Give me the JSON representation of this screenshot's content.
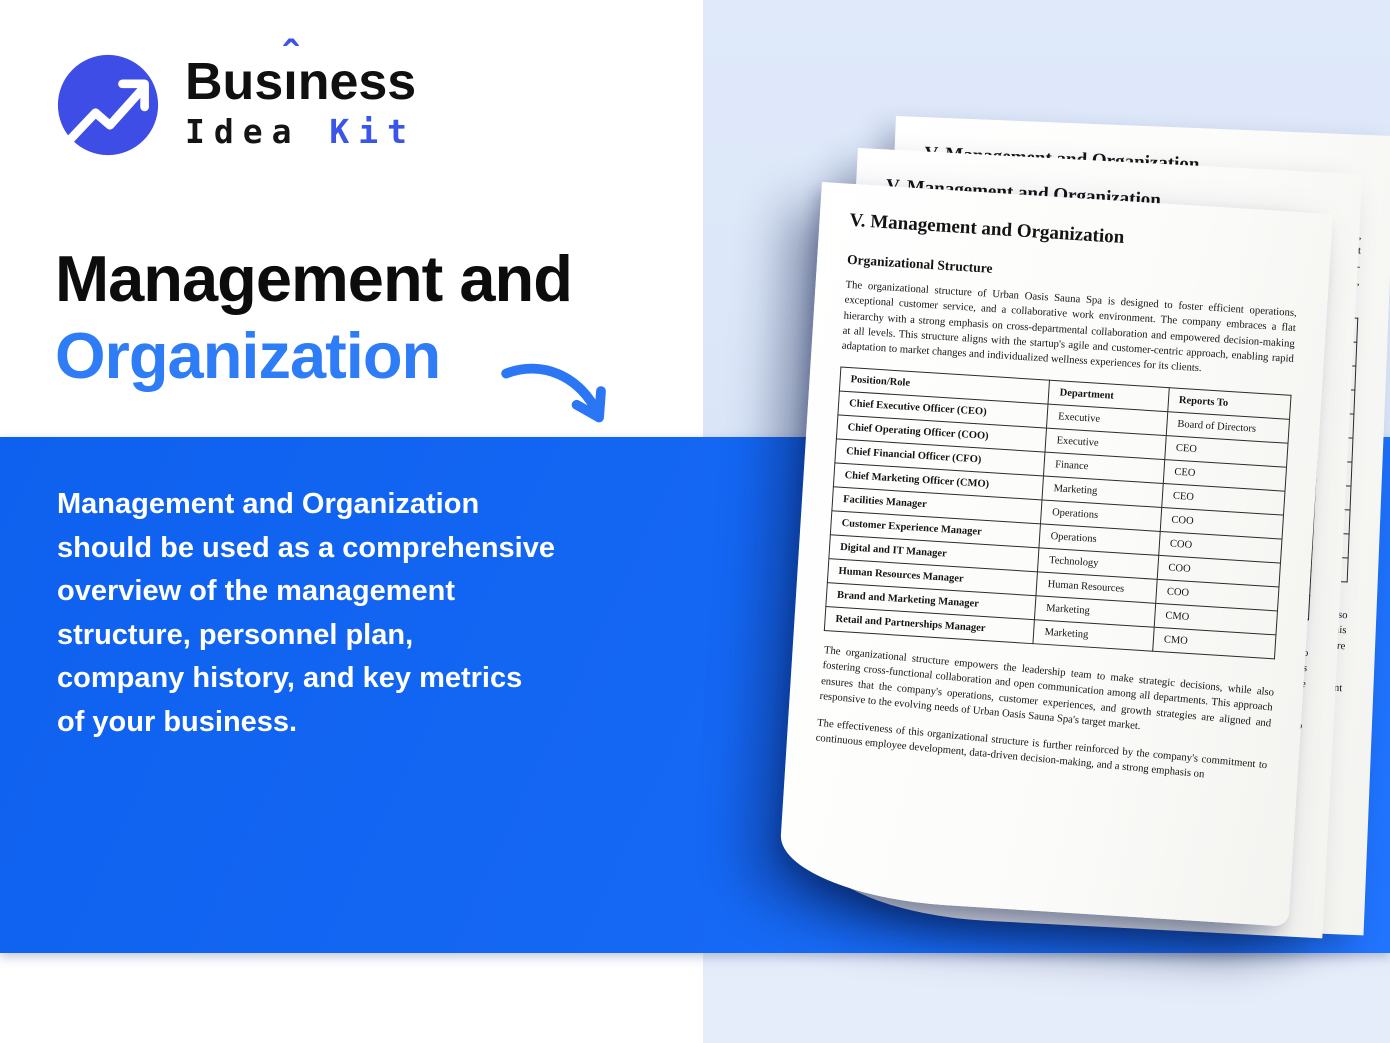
{
  "colors": {
    "band_blue": "#1568f4",
    "heading_blue": "#2e7cf6",
    "logo_circle_blue": "#3d4de5",
    "kit_blue": "#3a55e8",
    "panel_light_blue": "#dde8f9",
    "arrow_blue": "#2b76f5"
  },
  "icons": {
    "logo": "trending-up-arrow-icon",
    "pointer": "curved-arrow-icon"
  },
  "brand": {
    "wordmark_pre": "Bus",
    "wordmark_i": "ı",
    "wordmark_caret": "ˆ",
    "wordmark_post": "ness",
    "wordmark_line2_black": "Idea ",
    "wordmark_line2_blue": "Kit"
  },
  "hero": {
    "title_black": "Management and",
    "title_blue": "Organization",
    "description": "Management and Organization\nshould be used as a comprehensive\noverview of the management\nstructure, personnel plan,\ncompany history, and key metrics\nof your business."
  },
  "document": {
    "title": "V. Management and Organization",
    "section_heading": "Organizational Structure",
    "intro": "The organizational structure of Urban Oasis Sauna Spa is designed to foster efficient operations, exceptional customer service, and a collaborative work environment. The company embraces a flat hierarchy with a strong emphasis on cross-departmental collaboration and empowered decision-making at all levels. This structure aligns with the startup's agile and customer-centric approach, enabling rapid adaptation to market changes and individualized wellness experiences for its clients.",
    "table": {
      "headers": [
        "Position/Role",
        "Department",
        "Reports To"
      ],
      "rows": [
        [
          "Chief Executive Officer (CEO)",
          "Executive",
          "Board of Directors"
        ],
        [
          "Chief Operating Officer (COO)",
          "Executive",
          "CEO"
        ],
        [
          "Chief Financial Officer (CFO)",
          "Finance",
          "CEO"
        ],
        [
          "Chief Marketing Officer (CMO)",
          "Marketing",
          "CEO"
        ],
        [
          "Facilities Manager",
          "Operations",
          "COO"
        ],
        [
          "Customer Experience Manager",
          "Operations",
          "COO"
        ],
        [
          "Digital and IT Manager",
          "Technology",
          "COO"
        ],
        [
          "Human Resources Manager",
          "Human Resources",
          "COO"
        ],
        [
          "Brand and Marketing Manager",
          "Marketing",
          "CMO"
        ],
        [
          "Retail and Partnerships Manager",
          "Marketing",
          "CMO"
        ]
      ]
    },
    "closing_paragraphs": [
      "The organizational structure empowers the leadership team to make strategic decisions, while also fostering cross-functional collaboration and open communication among all departments. This approach ensures that the company's operations, customer experiences, and growth strategies are aligned and responsive to the evolving needs of Urban Oasis Sauna Spa's target market.",
      "The effectiveness of this organizational structure is further reinforced by the company's commitment to continuous employee development, data-driven decision-making, and a strong emphasis on"
    ]
  }
}
